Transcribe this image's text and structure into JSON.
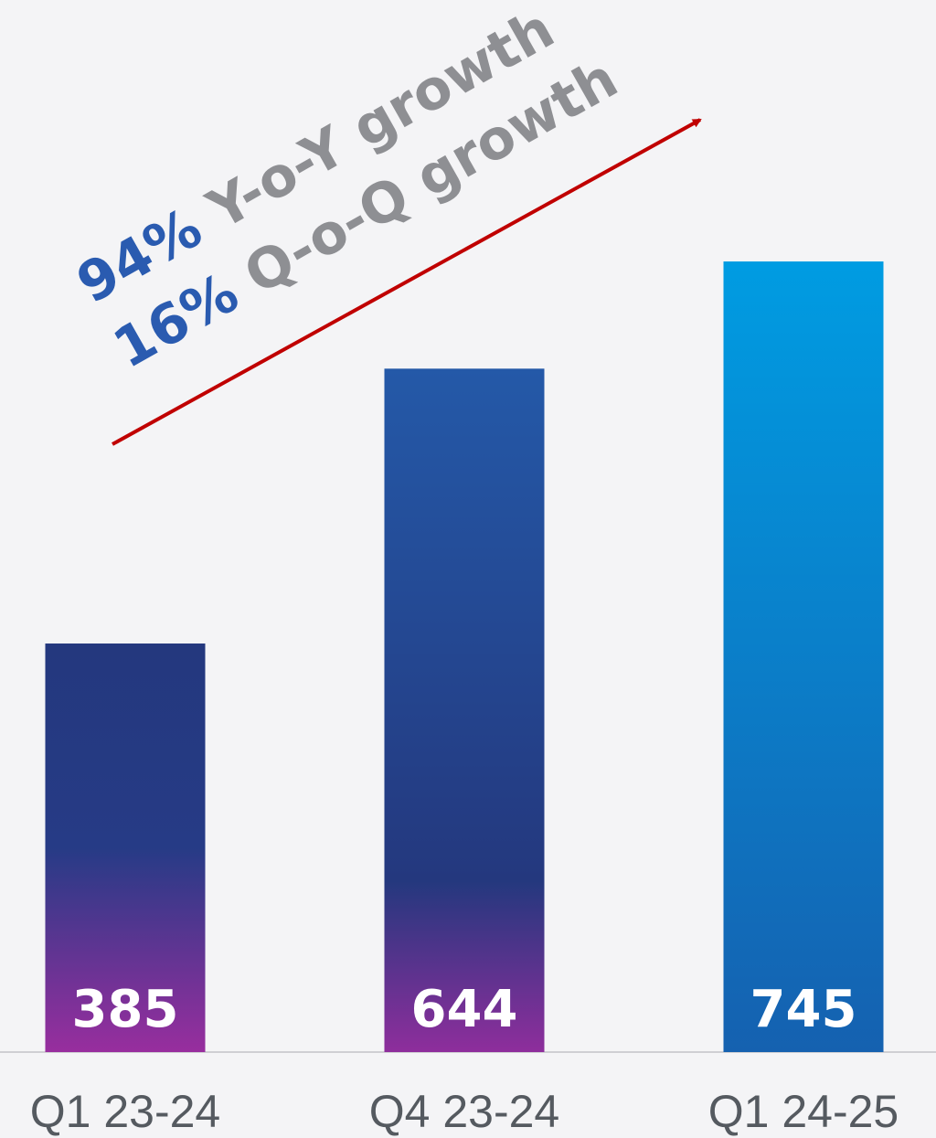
{
  "chart_data": {
    "type": "bar",
    "categories": [
      "Q1 23-24",
      "Q4 23-24",
      "Q1 24-25"
    ],
    "values": [
      385,
      644,
      745
    ],
    "annotations": [
      {
        "value_text": "94%",
        "text": "Y-o-Y growth"
      },
      {
        "value_text": "16%",
        "text": "Q-o-Q growth"
      }
    ]
  }
}
